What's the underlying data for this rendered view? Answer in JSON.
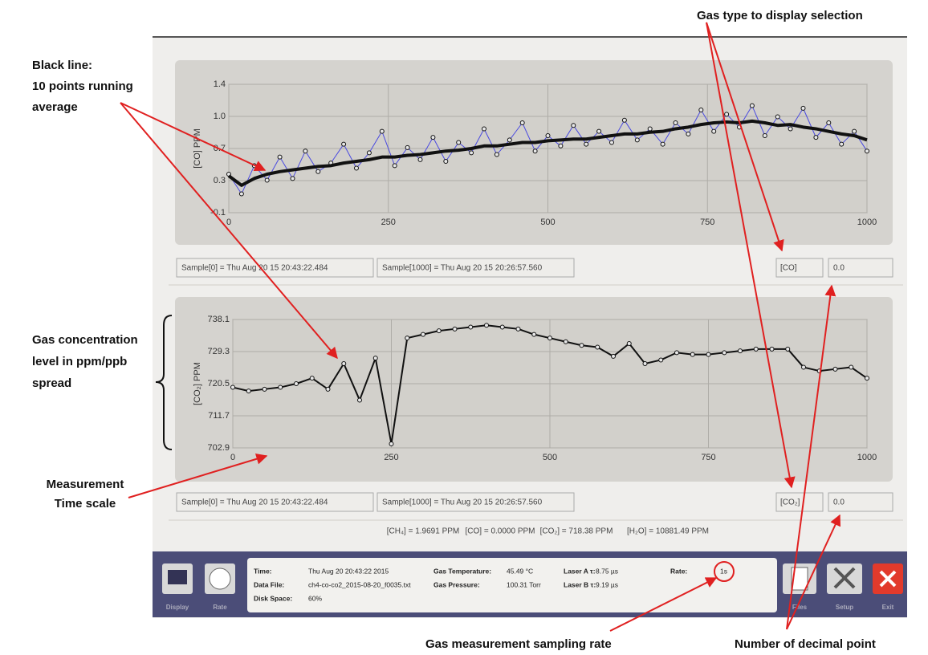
{
  "chart_data": [
    {
      "type": "line",
      "ylabel": "[CO] PPM",
      "grid": true,
      "xlim": [
        0,
        1000
      ],
      "xticks": [
        0,
        250,
        500,
        750,
        1000
      ],
      "ylim": [
        -0.1,
        1.4
      ],
      "yticks": [
        1.4,
        {
          "value": 1.025,
          "label": "1.0"
        },
        {
          "value": 0.65,
          "label": "0.7"
        },
        {
          "value": 0.275,
          "label": "0.3"
        },
        -0.1
      ],
      "x": [
        0,
        20,
        40,
        60,
        80,
        100,
        120,
        140,
        160,
        180,
        200,
        220,
        240,
        260,
        280,
        300,
        320,
        340,
        360,
        380,
        400,
        420,
        440,
        460,
        480,
        500,
        520,
        540,
        560,
        580,
        600,
        620,
        640,
        660,
        680,
        700,
        720,
        740,
        760,
        780,
        800,
        820,
        840,
        860,
        880,
        900,
        920,
        940,
        960,
        980,
        1000
      ],
      "series": [
        {
          "color": "#4a4ae0",
          "markers": true,
          "width": 1,
          "values": [
            0.35,
            0.12,
            0.45,
            0.28,
            0.55,
            0.3,
            0.62,
            0.38,
            0.48,
            0.7,
            0.42,
            0.6,
            0.85,
            0.45,
            0.66,
            0.52,
            0.78,
            0.5,
            0.72,
            0.6,
            0.88,
            0.58,
            0.75,
            0.95,
            0.62,
            0.8,
            0.68,
            0.92,
            0.7,
            0.85,
            0.72,
            0.98,
            0.75,
            0.88,
            0.7,
            0.95,
            0.82,
            1.1,
            0.85,
            1.05,
            0.9,
            1.15,
            0.8,
            1.02,
            0.88,
            1.12,
            0.78,
            0.95,
            0.7,
            0.85,
            0.62
          ]
        },
        {
          "color": "#111111",
          "markers": false,
          "width": 4,
          "values": [
            0.33,
            0.22,
            0.3,
            0.35,
            0.38,
            0.4,
            0.42,
            0.44,
            0.45,
            0.48,
            0.5,
            0.52,
            0.55,
            0.55,
            0.57,
            0.58,
            0.6,
            0.62,
            0.63,
            0.65,
            0.68,
            0.68,
            0.7,
            0.72,
            0.72,
            0.74,
            0.75,
            0.76,
            0.76,
            0.78,
            0.8,
            0.82,
            0.82,
            0.84,
            0.85,
            0.88,
            0.9,
            0.93,
            0.95,
            0.96,
            0.95,
            0.97,
            0.95,
            0.92,
            0.93,
            0.9,
            0.88,
            0.85,
            0.82,
            0.8,
            0.75
          ]
        }
      ]
    },
    {
      "type": "line",
      "ylabel": "[CO₂] PPM",
      "grid": true,
      "xlim": [
        0,
        1000
      ],
      "xticks": [
        0,
        250,
        500,
        750,
        1000
      ],
      "ylim": [
        702.9,
        738.1
      ],
      "yticks": [
        738.1,
        729.3,
        720.5,
        711.7,
        702.9
      ],
      "x": [
        0,
        25,
        50,
        75,
        100,
        125,
        150,
        175,
        200,
        225,
        250,
        275,
        300,
        325,
        350,
        375,
        400,
        425,
        450,
        475,
        500,
        525,
        550,
        575,
        600,
        625,
        650,
        675,
        700,
        725,
        750,
        775,
        800,
        825,
        850,
        875,
        900,
        925,
        950,
        975,
        1000
      ],
      "series": [
        {
          "color": "#111111",
          "markers": true,
          "width": 2,
          "values": [
            719.5,
            718.5,
            719,
            719.5,
            720.5,
            722,
            719,
            726,
            716,
            727.5,
            704,
            733,
            734,
            735,
            735.5,
            736,
            736.5,
            736,
            735.5,
            734,
            733,
            732,
            731,
            730.5,
            728,
            731.5,
            726,
            727,
            729,
            728.5,
            728.5,
            729,
            729.5,
            730,
            730,
            730,
            725,
            724,
            724.5,
            725,
            722
          ]
        }
      ]
    }
  ],
  "annotations": {
    "black_line": [
      "Black line:",
      "10 points running",
      "average"
    ],
    "gas_type": "Gas type to display selection",
    "concentration": [
      "Gas concentration",
      "level in ppm/ppb",
      "spread"
    ],
    "time_scale": [
      "Measurement",
      "Time scale"
    ],
    "sampling_rate": "Gas measurement sampling rate",
    "decimal": "Number of decimal point"
  },
  "ui": {
    "top": {
      "sample_start": "Sample[0] = Thu Aug 20 15 20:43:22.484",
      "sample_end": "Sample[1000] = Thu Aug 20 15 20:26:57.560",
      "gas": "[CO]",
      "decimals": "0.0"
    },
    "bottom": {
      "sample_start": "Sample[0] = Thu Aug 20 15 20:43:22.484",
      "sample_end": "Sample[1000] = Thu Aug 20 15 20:26:57.560",
      "gas": "[CO₂]",
      "decimals": "0.0"
    },
    "status": [
      "[CH₄] = 1.9691 PPM",
      "[CO] = 0.0000 PPM",
      "[CO₂] = 718.38 PPM",
      "[H₂O] = 10881.49 PPM"
    ],
    "buttons": [
      "Display",
      "Rate",
      "Files",
      "Setup",
      "Exit"
    ],
    "info": [
      [
        "Time:",
        "Thu Aug 20 20:43:22 2015"
      ],
      [
        "Data File:",
        "ch4-co-co2_2015-08-20_f0035.txt"
      ],
      [
        "Disk Space:",
        "60%"
      ],
      [
        "Gas Temperature:",
        "45.49 °C"
      ],
      [
        "Gas Pressure:",
        "100.31 Torr"
      ],
      [
        "Laser A τ:",
        "8.75 µs"
      ],
      [
        "Laser B τ:",
        "9.19 µs"
      ],
      [
        "Rate:",
        "1s"
      ]
    ]
  }
}
